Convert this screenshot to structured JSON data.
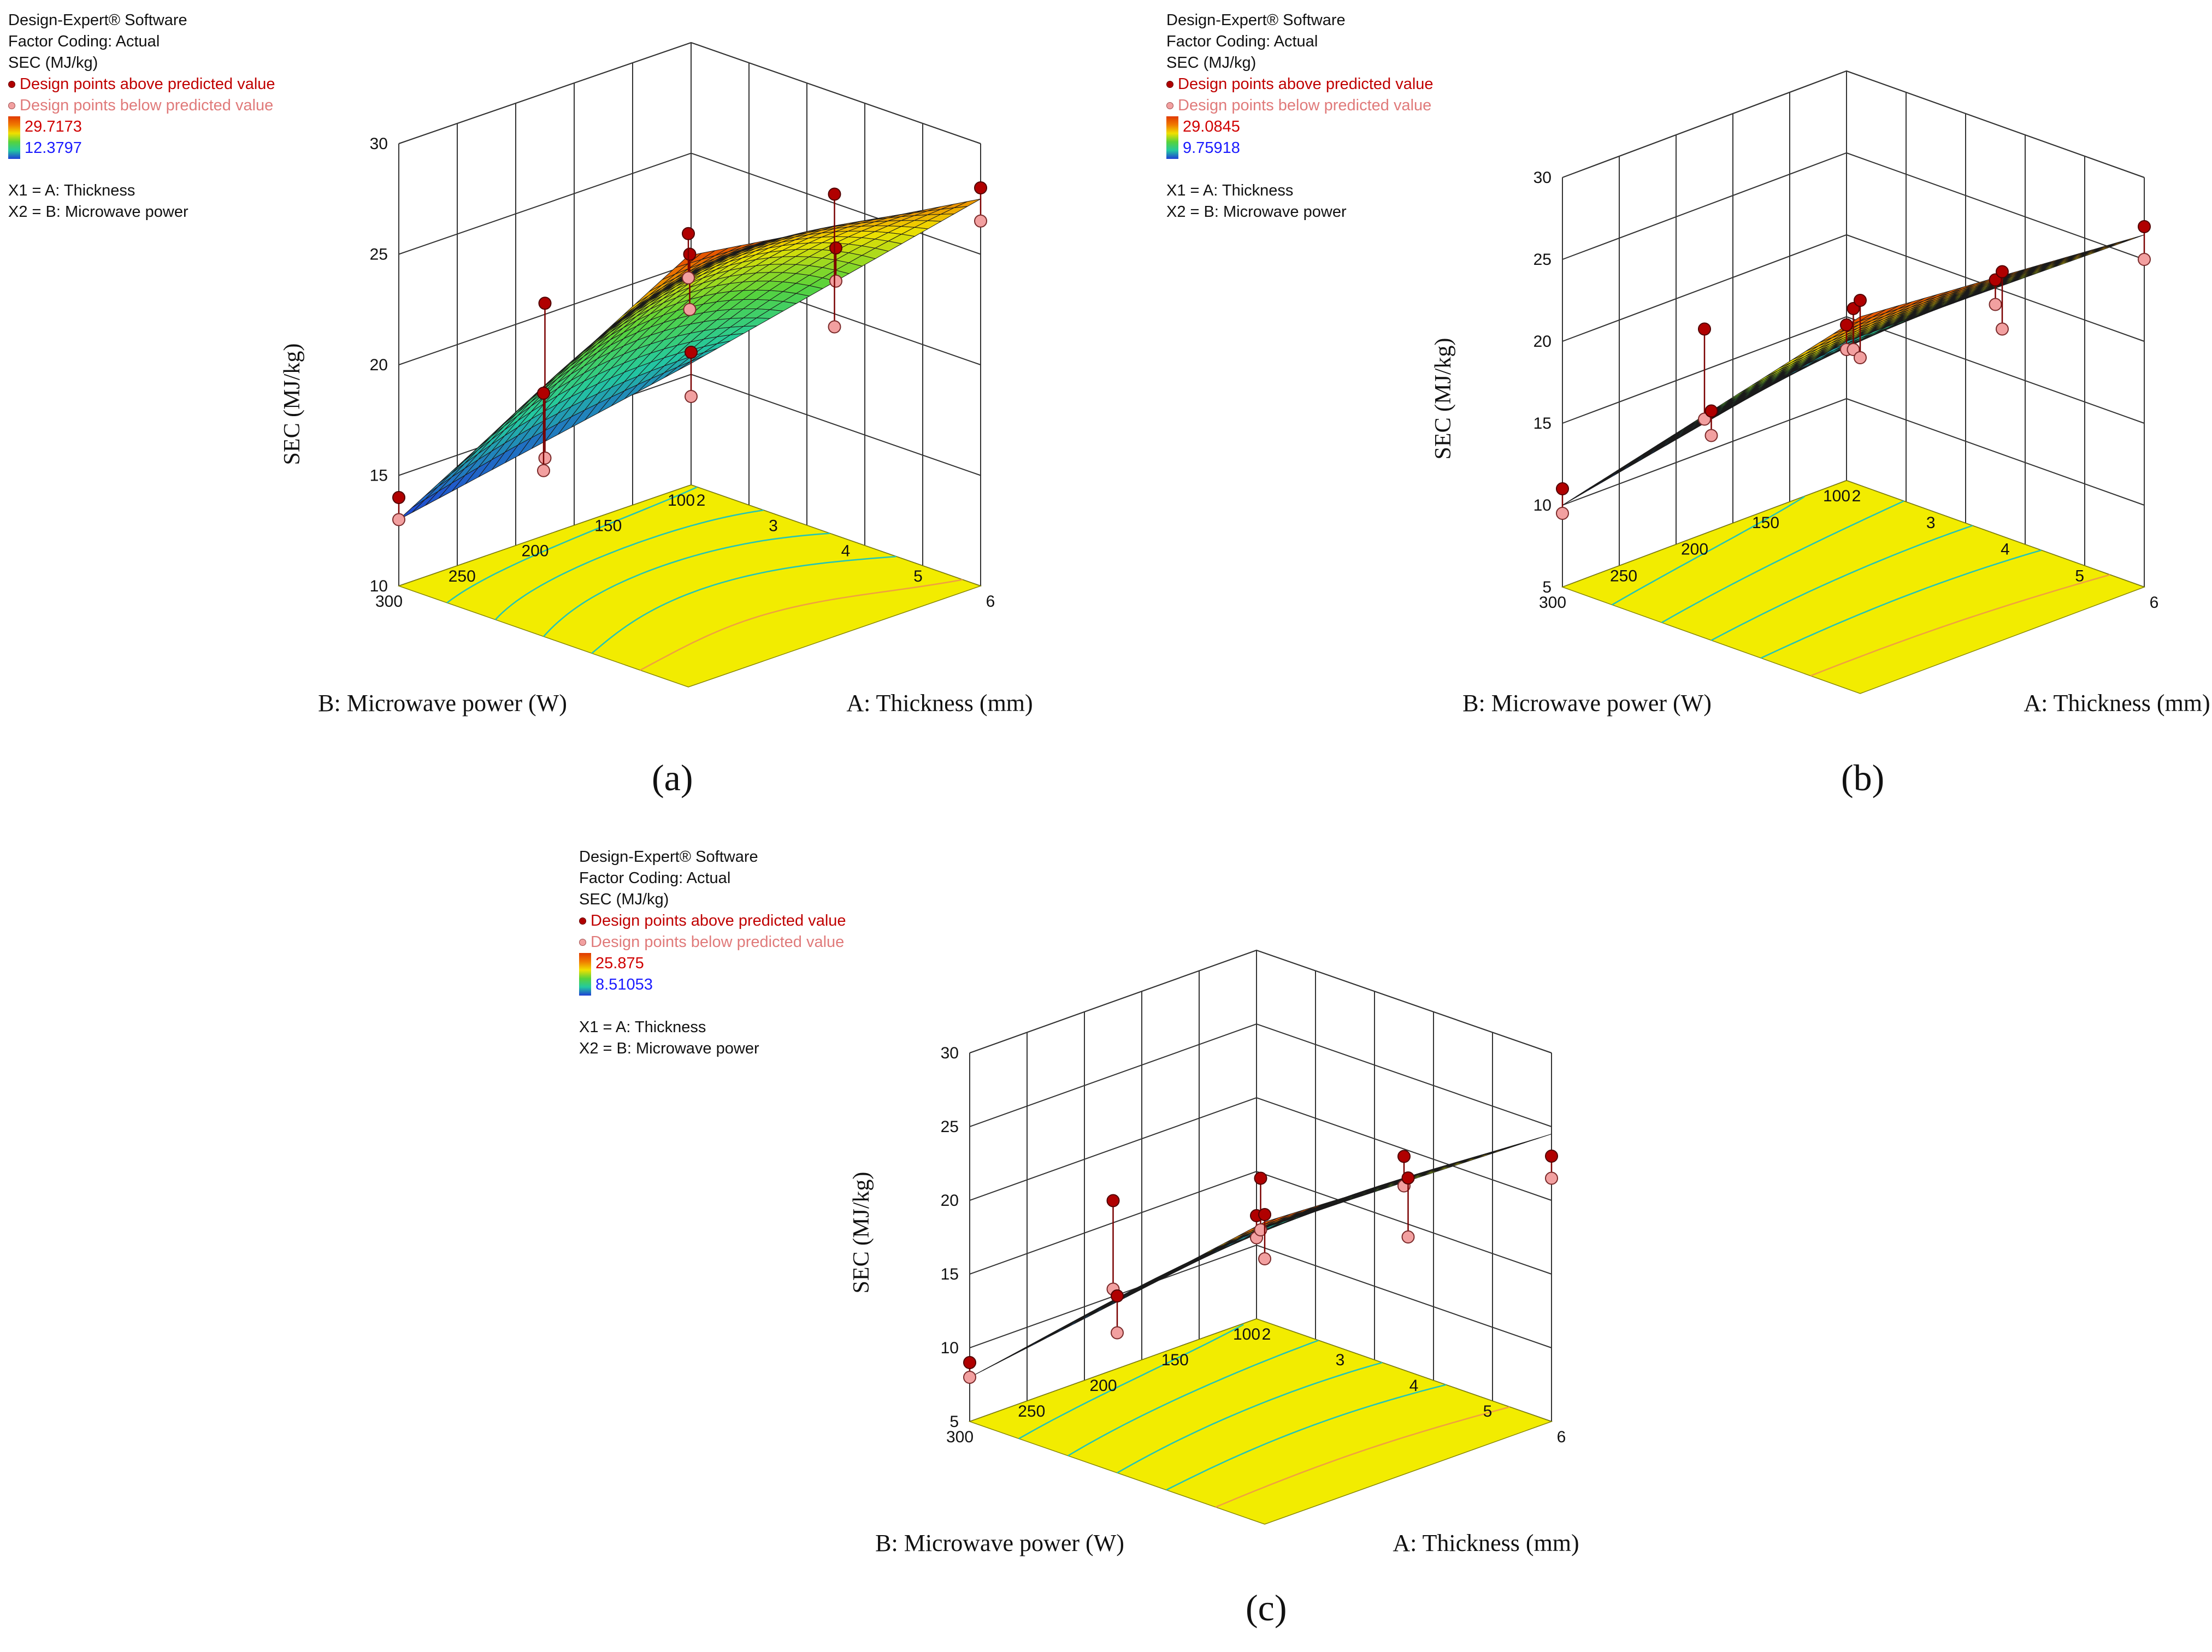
{
  "panels": [
    {
      "id": "a",
      "caption": "(a)",
      "info": {
        "software": "Design-Expert® Software",
        "coding": "Factor Coding: Actual",
        "response": "SEC (MJ/kg)",
        "above": "Design points above predicted value",
        "below": "Design points below predicted value",
        "max": "29.7173",
        "min": "12.3797",
        "x1": "X1 = A: Thickness",
        "x2": "X2 = B: Microwave power"
      }
    },
    {
      "id": "b",
      "caption": "(b)",
      "info": {
        "software": "Design-Expert® Software",
        "coding": "Factor Coding: Actual",
        "response": "SEC (MJ/kg)",
        "above": "Design points above predicted value",
        "below": "Design points below predicted value",
        "max": "29.0845",
        "min": "9.75918",
        "x1": "X1 = A: Thickness",
        "x2": "X2 = B: Microwave power"
      }
    },
    {
      "id": "c",
      "caption": "(c)",
      "info": {
        "software": "Design-Expert® Software",
        "coding": "Factor Coding: Actual",
        "response": "SEC (MJ/kg)",
        "above": "Design points above predicted value",
        "below": "Design points below predicted value",
        "max": "25.875",
        "min": "8.51053",
        "x1": "X1 = A: Thickness",
        "x2": "X2 = B: Microwave power"
      }
    }
  ],
  "chart_data": [
    {
      "type": "surface",
      "title": "(a)",
      "xlabel": "A: Thickness (mm)",
      "ylabel": "B: Microwave power (W)",
      "zlabel": "SEC (MJ/kg)",
      "xticks": [
        "2",
        "3",
        "4",
        "5",
        "6"
      ],
      "yticks": [
        "100",
        "150",
        "200",
        "250",
        "300"
      ],
      "zticks": [
        "10",
        "15",
        "20",
        "25",
        "30"
      ],
      "xlim": [
        2,
        6
      ],
      "ylim": [
        100,
        300
      ],
      "zlim": [
        10,
        30
      ],
      "surface_corners": {
        "A2_B100": 15.5,
        "A2_B300": 13.0,
        "A6_B100": 27.5,
        "A6_B300": 29.5
      },
      "surface_center": 23.5,
      "design_points": [
        {
          "A": 2,
          "B": 300,
          "above": 14.0,
          "below": 13.0
        },
        {
          "A": 2,
          "B": 200,
          "above": 20.5,
          "below": 13.5
        },
        {
          "A": 2,
          "B": 100,
          "above": 16.0,
          "below": 14.0
        },
        {
          "A": 4,
          "B": 300,
          "above": 21.0,
          "below": 17.5
        },
        {
          "A": 4,
          "B": 200,
          "above": 25.0,
          "below": 22.5
        },
        {
          "A": 4,
          "B": 100,
          "above": 23.0,
          "below": 21.5
        },
        {
          "A": 6,
          "B": 300,
          "above": 30.5,
          "below": 28.5
        },
        {
          "A": 6,
          "B": 200,
          "above": 30.0,
          "below": 24.0
        },
        {
          "A": 6,
          "B": 100,
          "above": 28.0,
          "below": 26.5
        }
      ]
    },
    {
      "type": "surface",
      "title": "(b)",
      "xlabel": "A: Thickness (mm)",
      "ylabel": "B: Microwave power (W)",
      "zlabel": "SEC (MJ/kg)",
      "xticks": [
        "2",
        "3",
        "4",
        "5",
        "6"
      ],
      "yticks": [
        "100",
        "150",
        "200",
        "250",
        "300"
      ],
      "zticks": [
        "5",
        "10",
        "15",
        "20",
        "25",
        "30"
      ],
      "xlim": [
        2,
        6
      ],
      "ylim": [
        100,
        300
      ],
      "zlim": [
        5,
        30
      ],
      "surface_corners": {
        "A2_B100": 13.5,
        "A2_B300": 10.0,
        "A6_B100": 26.5,
        "A6_B300": 28.0
      },
      "surface_center": 20.0,
      "design_points": [
        {
          "A": 2,
          "B": 300,
          "above": 11.0,
          "below": 9.5
        },
        {
          "A": 2,
          "B": 200,
          "above": 17.5,
          "below": 12.0
        },
        {
          "A": 2,
          "B": 100,
          "above": 14.5,
          "below": 13.0
        },
        {
          "A": 4,
          "B": 300,
          "above": 19.0,
          "below": 17.5
        },
        {
          "A": 4,
          "B": 200,
          "above": 22.0,
          "below": 19.5
        },
        {
          "A": 4,
          "B": 100,
          "above": 20.5,
          "below": 19.0
        },
        {
          "A": 6,
          "B": 300,
          "above": 29.0,
          "below": 25.5
        },
        {
          "A": 6,
          "B": 200,
          "above": 27.5,
          "below": 24.0
        },
        {
          "A": 6,
          "B": 100,
          "above": 27.0,
          "below": 25.0
        }
      ]
    },
    {
      "type": "surface",
      "title": "(c)",
      "xlabel": "A: Thickness (mm)",
      "ylabel": "B: Microwave power (W)",
      "zlabel": "SEC (MJ/kg)",
      "xticks": [
        "2",
        "3",
        "4",
        "5",
        "6"
      ],
      "yticks": [
        "100",
        "150",
        "200",
        "250",
        "300"
      ],
      "zticks": [
        "5",
        "10",
        "15",
        "20",
        "25",
        "30"
      ],
      "xlim": [
        2,
        6
      ],
      "ylim": [
        100,
        300
      ],
      "zlim": [
        5,
        30
      ],
      "surface_corners": {
        "A2_B100": 11.0,
        "A2_B300": 8.0,
        "A6_B100": 24.5,
        "A6_B300": 25.5
      },
      "surface_center": 18.0,
      "design_points": [
        {
          "A": 2,
          "B": 300,
          "above": 9.0,
          "below": 8.0
        },
        {
          "A": 2,
          "B": 200,
          "above": 16.5,
          "below": 10.5
        },
        {
          "A": 2,
          "B": 100,
          "above": 12.0,
          "below": 10.5
        },
        {
          "A": 4,
          "B": 300,
          "above": 17.0,
          "below": 14.5
        },
        {
          "A": 4,
          "B": 200,
          "above": 21.5,
          "below": 18.0
        },
        {
          "A": 4,
          "B": 100,
          "above": 19.5,
          "below": 17.5
        },
        {
          "A": 6,
          "B": 300,
          "above": 26.0,
          "below": 23.0
        },
        {
          "A": 6,
          "B": 200,
          "above": 25.0,
          "below": 21.0
        },
        {
          "A": 6,
          "B": 100,
          "above": 23.0,
          "below": 21.5
        }
      ]
    }
  ],
  "colors": {
    "floor": "#f2ec00",
    "contour": "#22c4b8",
    "contour_hot": "#f0a040",
    "point_above": "#b00000",
    "point_below": "#f2a0a0",
    "grid": "#333333"
  }
}
